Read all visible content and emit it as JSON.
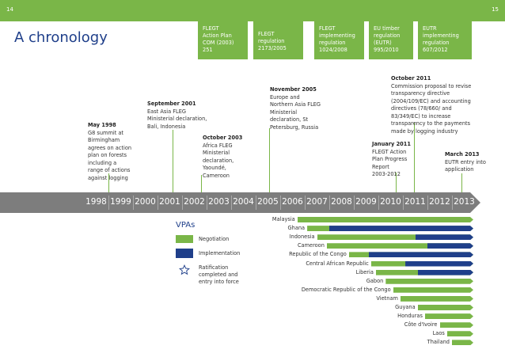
{
  "page": {
    "left_number": "14",
    "right_number": "15",
    "title": "A chronology"
  },
  "boxes": [
    {
      "id": "flegt-action-plan",
      "text": "FLEGT\nAction Plan\nCOM (2003)\n251"
    },
    {
      "id": "flegt-regulation",
      "text": "FLEGT\nregulation\n2173/2005"
    },
    {
      "id": "flegt-implementing",
      "text": "FLEGT\nimplementing\nregulation\n1024/2008"
    },
    {
      "id": "eu-timber",
      "text": "EU timber\nregulation\n(EUTR)\n995/2010"
    },
    {
      "id": "eutr-implementing",
      "text": "EUTR\nimplementing\nregulation\n607/2012"
    }
  ],
  "events": [
    {
      "id": "may-1998",
      "date": "May 1998",
      "text": "G8 summit at\nBirmingham\nagrees on action\nplan on forests\nincluding a\nrange of actions\nagainst logging"
    },
    {
      "id": "sep-2001",
      "date": "September 2001",
      "text": "East Asia FLEG\nMinisterial declaration,\nBali, Indonesia"
    },
    {
      "id": "oct-2003",
      "date": "October 2003",
      "text": "Africa FLEG\nMinisterial\ndeclaration,\nYaoundé,\nCameroon"
    },
    {
      "id": "nov-2005",
      "date": "November 2005",
      "text": "Europe and\nNorthern Asia FLEG\nMinisterial\ndeclaration, St\nPetersburg, Russia"
    },
    {
      "id": "jan-2011",
      "date": "January 2011",
      "text": "FLEGT Action\nPlan Progress\nReport\n2003-2012"
    },
    {
      "id": "oct-2011",
      "date": "October 2011",
      "text": "Commission proposal to revise\ntransparency directive\n(2004/109/EC) and accounting\ndirectives (78/660/ and\n83/349/EC) to increase\ntransparency to the payments\nmade by logging industry"
    },
    {
      "id": "mar-2013",
      "date": "March 2013",
      "text": "EUTR entry into\napplication"
    }
  ],
  "timeline": {
    "years": [
      "1998",
      "1999",
      "2000",
      "2001",
      "2002",
      "2003",
      "2004",
      "2005",
      "2006",
      "2007",
      "2008",
      "2009",
      "2010",
      "2011",
      "2012",
      "2013"
    ]
  },
  "legend": {
    "title": "VPAs",
    "negotiation": "Negotiation",
    "implementation": "Implementation",
    "ratification": "Ratification\ncompleted and\nentry into force"
  },
  "colors": {
    "green": "#7ab648",
    "navy": "#1f3f8a",
    "timeline": "#7d7d7d",
    "title": "#1f3f8a"
  },
  "vpa_rows": [
    {
      "country": "Malaysia",
      "negotiation_start": 2006.7,
      "implementation_start": null,
      "ratification": null
    },
    {
      "country": "Ghana",
      "negotiation_start": 2007.1,
      "implementation_start": 2008.0,
      "ratification": 2009.3
    },
    {
      "country": "Indonesia",
      "negotiation_start": 2007.5,
      "implementation_start": 2011.5,
      "ratification": null
    },
    {
      "country": "Cameroon",
      "negotiation_start": 2007.9,
      "implementation_start": 2012.0,
      "ratification": 2011.7
    },
    {
      "country": "Republic of the Congo",
      "negotiation_start": 2008.8,
      "implementation_start": 2009.6,
      "ratification": 2012.5
    },
    {
      "country": "Central African Republic",
      "negotiation_start": 2009.7,
      "implementation_start": 2011.1,
      "ratification": 2012.1
    },
    {
      "country": "Liberia",
      "negotiation_start": 2009.9,
      "implementation_start": 2011.6,
      "ratification": 2013.3
    },
    {
      "country": "Gabon",
      "negotiation_start": 2010.3,
      "implementation_start": null,
      "ratification": null
    },
    {
      "country": "Democratic Republic of the Congo",
      "negotiation_start": 2010.6,
      "implementation_start": null,
      "ratification": null
    },
    {
      "country": "Vietnam",
      "negotiation_start": 2010.9,
      "implementation_start": null,
      "ratification": null
    },
    {
      "country": "Guyana",
      "negotiation_start": 2011.6,
      "implementation_start": null,
      "ratification": null
    },
    {
      "country": "Honduras",
      "negotiation_start": 2011.9,
      "implementation_start": null,
      "ratification": null
    },
    {
      "country": "Côte d'Ivoire",
      "negotiation_start": 2012.5,
      "implementation_start": null,
      "ratification": null
    },
    {
      "country": "Laos",
      "negotiation_start": 2012.8,
      "implementation_start": null,
      "ratification": null
    },
    {
      "country": "Thailand",
      "negotiation_start": 2013.0,
      "implementation_start": null,
      "ratification": null
    }
  ]
}
